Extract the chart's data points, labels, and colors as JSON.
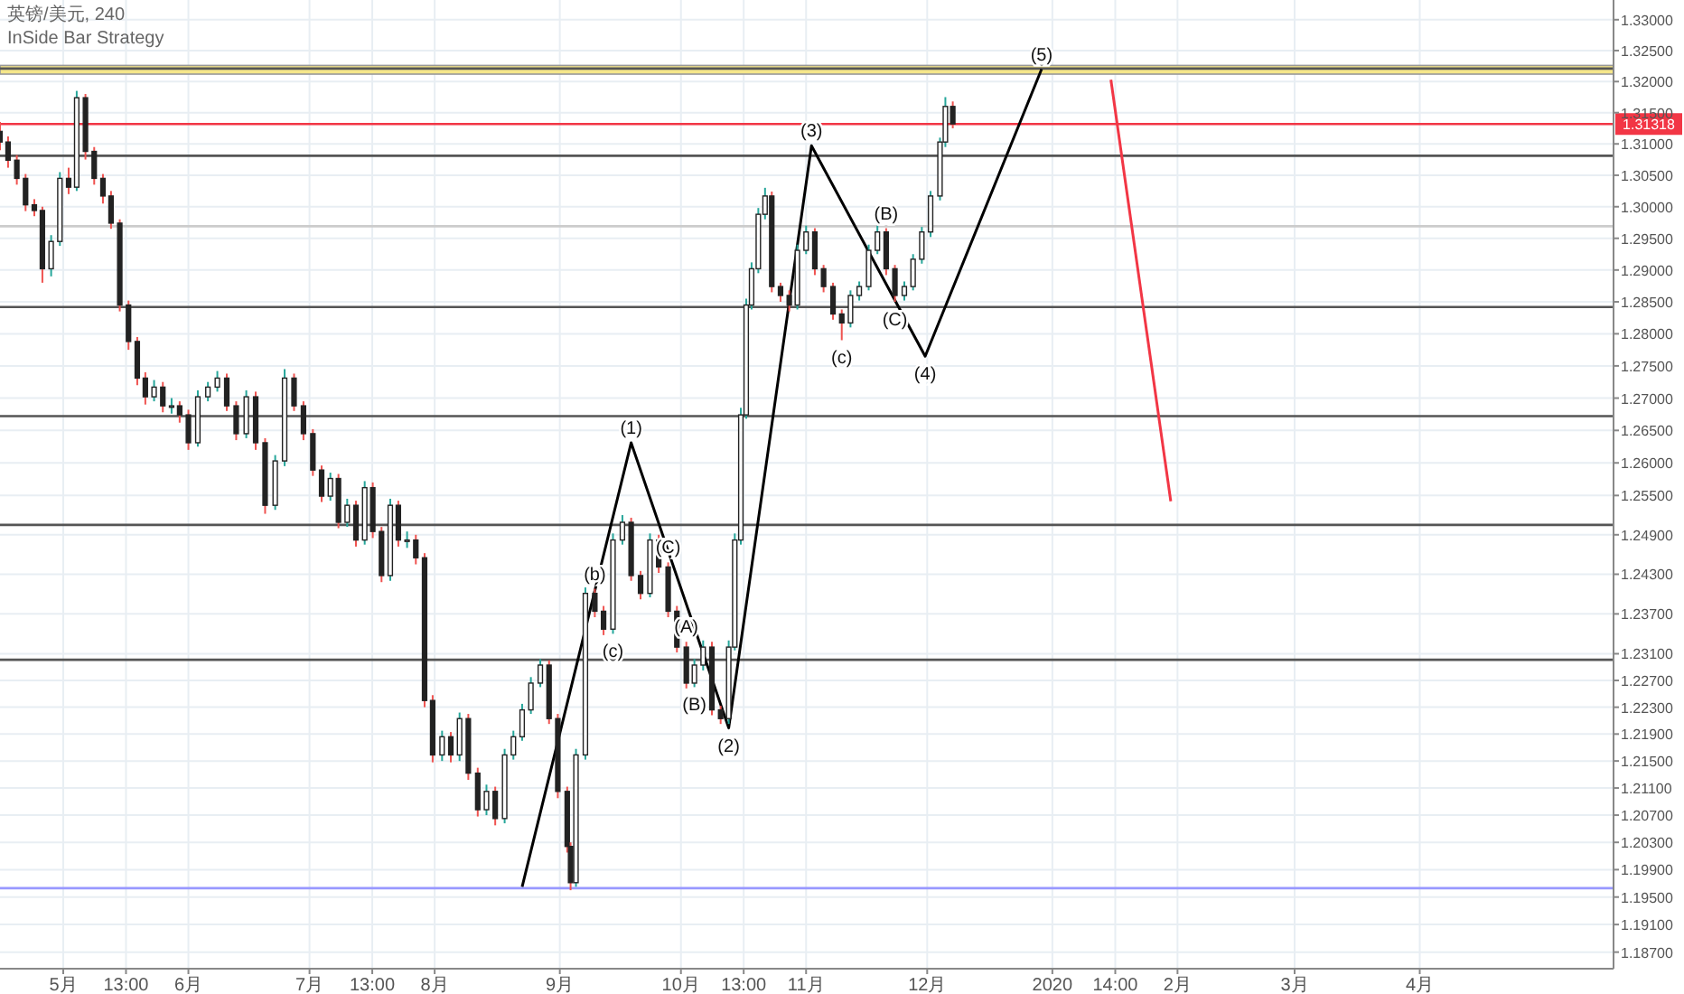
{
  "chart_data": {
    "type": "candlestick",
    "title": "英镑/美元, 240",
    "subtitle": "InSide Bar Strategy",
    "log": true,
    "grid": true,
    "ylim": [
      1.1846,
      1.3332
    ],
    "yticks": [
      {
        "value": 1.33,
        "label": "1.33000"
      },
      {
        "value": 1.325,
        "label": "1.32500"
      },
      {
        "value": 1.32,
        "label": "1.32000"
      },
      {
        "value": 1.315,
        "label": "1.31500"
      },
      {
        "value": 1.31,
        "label": "1.31000"
      },
      {
        "value": 1.305,
        "label": "1.30500"
      },
      {
        "value": 1.3,
        "label": "1.30000"
      },
      {
        "value": 1.295,
        "label": "1.29500"
      },
      {
        "value": 1.29,
        "label": "1.29000"
      },
      {
        "value": 1.285,
        "label": "1.28500"
      },
      {
        "value": 1.28,
        "label": "1.28000"
      },
      {
        "value": 1.275,
        "label": "1.27500"
      },
      {
        "value": 1.27,
        "label": "1.27000"
      },
      {
        "value": 1.265,
        "label": "1.26500"
      },
      {
        "value": 1.26,
        "label": "1.26000"
      },
      {
        "value": 1.255,
        "label": "1.25500"
      },
      {
        "value": 1.249,
        "label": "1.24900"
      },
      {
        "value": 1.243,
        "label": "1.24300"
      },
      {
        "value": 1.237,
        "label": "1.23700"
      },
      {
        "value": 1.231,
        "label": "1.23100"
      },
      {
        "value": 1.227,
        "label": "1.22700"
      },
      {
        "value": 1.223,
        "label": "1.22300"
      },
      {
        "value": 1.219,
        "label": "1.21900"
      },
      {
        "value": 1.215,
        "label": "1.21500"
      },
      {
        "value": 1.211,
        "label": "1.21100"
      },
      {
        "value": 1.207,
        "label": "1.20700"
      },
      {
        "value": 1.203,
        "label": "1.20300"
      },
      {
        "value": 1.199,
        "label": "1.19900"
      },
      {
        "value": 1.195,
        "label": "1.19500"
      },
      {
        "value": 1.191,
        "label": "1.19100"
      },
      {
        "value": 1.187,
        "label": "1.18700"
      }
    ],
    "xlim": [
      "2019-04-15T08:00",
      "2020-05-19"
    ],
    "xticks": [
      {
        "value": "2019-05-01",
        "label": "5月"
      },
      {
        "value": "2019-05-16T13:00",
        "label": "13:00"
      },
      {
        "value": "2019-06-01",
        "label": "6月"
      },
      {
        "value": "2019-07-01",
        "label": "7月"
      },
      {
        "value": "2019-07-16T13:00",
        "label": "13:00"
      },
      {
        "value": "2019-08-01",
        "label": "8月"
      },
      {
        "value": "2019-09-01",
        "label": "9月"
      },
      {
        "value": "2019-10-01",
        "label": "10月"
      },
      {
        "value": "2019-10-16T13:00",
        "label": "13:00"
      },
      {
        "value": "2019-11-01",
        "label": "11月"
      },
      {
        "value": "2019-12-01",
        "label": "12月"
      },
      {
        "value": "2020-01-01",
        "label": "2020"
      },
      {
        "value": "2020-01-16T14:00",
        "label": "14:00"
      },
      {
        "value": "2020-02-01",
        "label": "2月"
      },
      {
        "value": "2020-03-01",
        "label": "3月"
      },
      {
        "value": "2020-04-01",
        "label": "4月"
      }
    ],
    "x": [
      "2019-04-15T08:00",
      "2019-04-17T08:00",
      "2019-04-19T12:00",
      "2019-04-21T16:00",
      "2019-04-23T20:00",
      "2019-04-25T20:00",
      "2019-04-28T00:00",
      "2019-04-30T04:00",
      "2019-05-02T08:00",
      "2019-05-04T08:00",
      "2019-05-06T12:00",
      "2019-05-08T16:00",
      "2019-05-10T20:00",
      "2019-05-12T20:00",
      "2019-05-15T00:00",
      "2019-05-17T04:00",
      "2019-05-19T08:00",
      "2019-05-21T08:00",
      "2019-05-23T12:00",
      "2019-05-25T16:00",
      "2019-05-27T20:00",
      "2019-05-29T20:00",
      "2019-06-01T00:00",
      "2019-06-03T08:00",
      "2019-06-05T20:00",
      "2019-06-08T04:00",
      "2019-06-10T12:00",
      "2019-06-12T20:00",
      "2019-06-15T08:00",
      "2019-06-17T16:00",
      "2019-06-20T00:00",
      "2019-06-22T12:00",
      "2019-06-24T20:00",
      "2019-06-27T04:00",
      "2019-06-29T12:00",
      "2019-07-01T20:00",
      "2019-07-04T00:00",
      "2019-07-06T04:00",
      "2019-07-08T04:00",
      "2019-07-10T08:00",
      "2019-07-12T12:00",
      "2019-07-14T16:00",
      "2019-07-16T16:00",
      "2019-07-18T20:00",
      "2019-07-21T00:00",
      "2019-07-23T00:00",
      "2019-07-25T04:00",
      "2019-07-27T08:00",
      "2019-07-29T12:00",
      "2019-07-31T12:00",
      "2019-08-02T20:00",
      "2019-08-05T00:00",
      "2019-08-07T04:00",
      "2019-08-09T08:00",
      "2019-08-11T16:00",
      "2019-08-13T20:00",
      "2019-08-16T00:00",
      "2019-08-18T08:00",
      "2019-08-20T12:00",
      "2019-08-22T16:00",
      "2019-08-24T20:00",
      "2019-08-27T04:00",
      "2019-08-29T08:00",
      "2019-08-31T12:00",
      "2019-09-02T20:00",
      "2019-09-03T16:00",
      "2019-09-05T00:00",
      "2019-09-07T08:00",
      "2019-09-09T16:00",
      "2019-09-11T20:00",
      "2019-09-14T04:00",
      "2019-09-16T12:00",
      "2019-09-18T16:00",
      "2019-09-21T00:00",
      "2019-09-23T08:00",
      "2019-09-25T12:00",
      "2019-09-27T20:00",
      "2019-09-30T00:00",
      "2019-10-02T08:00",
      "2019-10-04T08:00",
      "2019-10-06T12:00",
      "2019-10-08T16:00",
      "2019-10-10T20:00",
      "2019-10-12T20:00",
      "2019-10-14T08:00",
      "2019-10-15T20:00",
      "2019-10-17T04:00",
      "2019-10-18T12:00",
      "2019-10-20T04:00",
      "2019-10-21T20:00",
      "2019-10-23T12:00",
      "2019-10-25T16:00",
      "2019-10-27T20:00",
      "2019-10-29T20:00",
      "2019-11-01T00:00",
      "2019-11-03T04:00",
      "2019-11-05T08:00",
      "2019-11-07T16:00",
      "2019-11-09T20:00",
      "2019-11-12T00:00",
      "2019-11-14T04:00",
      "2019-11-16T12:00",
      "2019-11-18T16:00",
      "2019-11-20T20:00",
      "2019-11-23T00:00",
      "2019-11-25T08:00",
      "2019-11-27T12:00",
      "2019-11-29T16:00",
      "2019-12-01T20:00",
      "2019-12-04T04:00",
      "2019-12-05T12:00",
      "2019-12-07T08:00"
    ],
    "ohlc": [
      [
        1.312,
        1.3135,
        1.309,
        1.3103
      ],
      [
        1.3103,
        1.3112,
        1.3062,
        1.3074
      ],
      [
        1.3074,
        1.3082,
        1.3035,
        1.3045
      ],
      [
        1.3045,
        1.3052,
        1.2993,
        1.3003
      ],
      [
        1.3003,
        1.3012,
        1.2985,
        1.2994
      ],
      [
        1.2994,
        1.3,
        1.288,
        1.2902
      ],
      [
        1.2902,
        1.2955,
        1.289,
        1.2945
      ],
      [
        1.2945,
        1.3055,
        1.2938,
        1.3045
      ],
      [
        1.3045,
        1.3062,
        1.302,
        1.3031
      ],
      [
        1.3031,
        1.3185,
        1.3025,
        1.3174
      ],
      [
        1.3174,
        1.318,
        1.3075,
        1.3088
      ],
      [
        1.3088,
        1.3095,
        1.3035,
        1.3045
      ],
      [
        1.3045,
        1.3052,
        1.3005,
        1.3017
      ],
      [
        1.3017,
        1.3025,
        1.2965,
        1.2974
      ],
      [
        1.2974,
        1.298,
        1.2835,
        1.2845
      ],
      [
        1.2845,
        1.2852,
        1.2775,
        1.2788
      ],
      [
        1.2788,
        1.2795,
        1.272,
        1.2731
      ],
      [
        1.2731,
        1.274,
        1.269,
        1.2702
      ],
      [
        1.2702,
        1.2728,
        1.2695,
        1.2717
      ],
      [
        1.2717,
        1.2725,
        1.2678,
        1.2688
      ],
      [
        1.2688,
        1.27,
        1.2676,
        1.2688
      ],
      [
        1.2688,
        1.2695,
        1.2662,
        1.2674
      ],
      [
        1.2674,
        1.2682,
        1.262,
        1.2631
      ],
      [
        1.2631,
        1.2712,
        1.2625,
        1.2702
      ],
      [
        1.2702,
        1.2725,
        1.2695,
        1.2717
      ],
      [
        1.2717,
        1.2742,
        1.271,
        1.2731
      ],
      [
        1.2731,
        1.2738,
        1.268,
        1.2688
      ],
      [
        1.2688,
        1.2695,
        1.2635,
        1.2645
      ],
      [
        1.2645,
        1.2712,
        1.2638,
        1.2702
      ],
      [
        1.2702,
        1.271,
        1.262,
        1.2631
      ],
      [
        1.2631,
        1.2638,
        1.2522,
        1.2535
      ],
      [
        1.2535,
        1.2612,
        1.2528,
        1.2603
      ],
      [
        1.2603,
        1.2745,
        1.2595,
        1.2731
      ],
      [
        1.2731,
        1.2738,
        1.268,
        1.2688
      ],
      [
        1.2688,
        1.2695,
        1.2635,
        1.2645
      ],
      [
        1.2645,
        1.2652,
        1.258,
        1.2589
      ],
      [
        1.2589,
        1.2596,
        1.254,
        1.2549
      ],
      [
        1.2549,
        1.2585,
        1.2542,
        1.2576
      ],
      [
        1.2576,
        1.2583,
        1.25,
        1.2509
      ],
      [
        1.2509,
        1.2545,
        1.2502,
        1.2535
      ],
      [
        1.2535,
        1.2542,
        1.2472,
        1.2482
      ],
      [
        1.2482,
        1.2572,
        1.2475,
        1.2562
      ],
      [
        1.2562,
        1.257,
        1.2485,
        1.2495
      ],
      [
        1.2495,
        1.2502,
        1.2418,
        1.2428
      ],
      [
        1.2428,
        1.2545,
        1.242,
        1.2535
      ],
      [
        1.2535,
        1.2542,
        1.2472,
        1.2482
      ],
      [
        1.2482,
        1.2495,
        1.247,
        1.2482
      ],
      [
        1.2482,
        1.249,
        1.2445,
        1.2455
      ],
      [
        1.2455,
        1.2462,
        1.223,
        1.224
      ],
      [
        1.224,
        1.2248,
        1.2148,
        1.2159
      ],
      [
        1.2159,
        1.2195,
        1.215,
        1.2186
      ],
      [
        1.2186,
        1.2193,
        1.2148,
        1.2159
      ],
      [
        1.2159,
        1.2222,
        1.215,
        1.2213
      ],
      [
        1.2213,
        1.222,
        1.2122,
        1.2132
      ],
      [
        1.2132,
        1.214,
        1.2068,
        1.2078
      ],
      [
        1.2078,
        1.2115,
        1.207,
        1.2105
      ],
      [
        1.2105,
        1.2112,
        1.2055,
        1.2065
      ],
      [
        1.2065,
        1.2168,
        1.2058,
        1.2159
      ],
      [
        1.2159,
        1.2195,
        1.2152,
        1.2186
      ],
      [
        1.2186,
        1.2235,
        1.218,
        1.2226
      ],
      [
        1.2226,
        1.2275,
        1.222,
        1.2266
      ],
      [
        1.2266,
        1.2302,
        1.226,
        1.2293
      ],
      [
        1.2293,
        1.23,
        1.2205,
        1.2213
      ],
      [
        1.2213,
        1.222,
        1.2095,
        1.2105
      ],
      [
        1.2105,
        1.2112,
        1.2015,
        1.2024
      ],
      [
        1.2024,
        1.203,
        1.196,
        1.1971
      ],
      [
        1.1971,
        1.2168,
        1.1965,
        1.2159
      ],
      [
        1.2159,
        1.241,
        1.2152,
        1.2401
      ],
      [
        1.2401,
        1.2408,
        1.2365,
        1.2374
      ],
      [
        1.2374,
        1.2382,
        1.2338,
        1.2347
      ],
      [
        1.2347,
        1.2492,
        1.234,
        1.2482
      ],
      [
        1.2482,
        1.252,
        1.2475,
        1.2509
      ],
      [
        1.2509,
        1.2516,
        1.242,
        1.2428
      ],
      [
        1.2428,
        1.2435,
        1.2392,
        1.2401
      ],
      [
        1.2401,
        1.2492,
        1.2395,
        1.2482
      ],
      [
        1.2482,
        1.249,
        1.2432,
        1.2441
      ],
      [
        1.2441,
        1.2448,
        1.2365,
        1.2374
      ],
      [
        1.2374,
        1.2382,
        1.2312,
        1.232
      ],
      [
        1.232,
        1.2328,
        1.2258,
        1.2266
      ],
      [
        1.2266,
        1.2302,
        1.226,
        1.2293
      ],
      [
        1.2293,
        1.233,
        1.2285,
        1.232
      ],
      [
        1.232,
        1.2328,
        1.2218,
        1.2226
      ],
      [
        1.2226,
        1.2232,
        1.2205,
        1.2213
      ],
      [
        1.2213,
        1.233,
        1.2205,
        1.232
      ],
      [
        1.232,
        1.2492,
        1.2315,
        1.2482
      ],
      [
        1.2482,
        1.2685,
        1.2475,
        1.2674
      ],
      [
        1.2674,
        1.2855,
        1.2668,
        1.2845
      ],
      [
        1.2845,
        1.2912,
        1.2838,
        1.2902
      ],
      [
        1.2902,
        1.2998,
        1.2895,
        1.2988
      ],
      [
        1.2988,
        1.303,
        1.298,
        1.3017
      ],
      [
        1.3017,
        1.3024,
        1.2865,
        1.2874
      ],
      [
        1.2874,
        1.288,
        1.285,
        1.286
      ],
      [
        1.286,
        1.2868,
        1.2835,
        1.2845
      ],
      [
        1.2845,
        1.294,
        1.2838,
        1.2931
      ],
      [
        1.2931,
        1.297,
        1.2925,
        1.296
      ],
      [
        1.296,
        1.2966,
        1.2892,
        1.2902
      ],
      [
        1.2902,
        1.2908,
        1.2865,
        1.2874
      ],
      [
        1.2874,
        1.288,
        1.2822,
        1.2831
      ],
      [
        1.2831,
        1.2838,
        1.279,
        1.2817
      ],
      [
        1.2817,
        1.2868,
        1.281,
        1.286
      ],
      [
        1.286,
        1.2882,
        1.2852,
        1.2874
      ],
      [
        1.2874,
        1.294,
        1.2868,
        1.2931
      ],
      [
        1.2931,
        1.297,
        1.2925,
        1.296
      ],
      [
        1.296,
        1.2966,
        1.2892,
        1.2902
      ],
      [
        1.2902,
        1.2908,
        1.285,
        1.286
      ],
      [
        1.286,
        1.2882,
        1.2852,
        1.2874
      ],
      [
        1.2874,
        1.2925,
        1.2868,
        1.2917
      ],
      [
        1.2917,
        1.2968,
        1.291,
        1.296
      ],
      [
        1.296,
        1.3025,
        1.2952,
        1.3017
      ],
      [
        1.3017,
        1.311,
        1.301,
        1.3103
      ],
      [
        1.3103,
        1.3175,
        1.3095,
        1.316
      ],
      [
        1.316,
        1.3168,
        1.3125,
        1.3132
      ]
    ],
    "series": [
      {
        "type": "line",
        "color": "#000000",
        "x": [
          "2019-08-22T16:00",
          "2019-09-18T16:00",
          "2019-10-12T20:00",
          "2019-11-02T08:00",
          "2019-11-30T12:00",
          "2019-12-29T08:00"
        ],
        "values": [
          1.1965,
          1.2631,
          1.2199,
          1.3097,
          1.2765,
          1.322
        ]
      },
      {
        "type": "line",
        "color": "#f23645",
        "x": [
          "2020-01-15T12:00",
          "2020-01-30T08:00"
        ],
        "values": [
          1.3203,
          1.2541
        ]
      }
    ],
    "ref_lines": [
      {
        "axis": "y",
        "value": 1.3221,
        "color": "#555555"
      },
      {
        "axis": "y",
        "value": 1.3081,
        "color": "#555555"
      },
      {
        "axis": "y",
        "value": 1.2969,
        "color": "#cccccc"
      },
      {
        "axis": "y",
        "value": 1.2842,
        "color": "#555555"
      },
      {
        "axis": "y",
        "value": 1.2672,
        "color": "#555555"
      },
      {
        "axis": "y",
        "value": 1.2505,
        "color": "#555555"
      },
      {
        "axis": "y",
        "value": 1.2301,
        "color": "#555555"
      },
      {
        "axis": "y",
        "value": 1.1963,
        "color": "#9999ff"
      },
      {
        "axis": "y",
        "value": 1.31318,
        "label": "1.31318",
        "color": "#f23645"
      }
    ],
    "bands": [
      {
        "axis": "y",
        "from": 1.3212,
        "to": 1.3226,
        "color": "#f5e68a"
      }
    ],
    "annotations": [
      {
        "text": "(1)",
        "x": "2019-09-18T16:00",
        "y": 1.2631
      },
      {
        "text": "(2)",
        "x": "2019-10-12T20:00",
        "y": 1.2199
      },
      {
        "text": "(3)",
        "x": "2019-11-02T08:00",
        "y": 1.3097
      },
      {
        "text": "(4)",
        "x": "2019-11-30T12:00",
        "y": 1.2765
      },
      {
        "text": "(5)",
        "x": "2019-12-29T08:00",
        "y": 1.322
      },
      {
        "text": "(c)",
        "x": "2019-11-09T20:00",
        "y": 1.279
      },
      {
        "text": "(b)",
        "x": "2019-09-09T16:00",
        "y": 1.2408
      },
      {
        "text": "(c)",
        "x": "2019-09-14T04:00",
        "y": 1.234
      },
      {
        "text": "(A)",
        "x": "2019-10-02T08:00",
        "y": 1.2328
      },
      {
        "text": "(B)",
        "x": "2019-10-04T08:00",
        "y": 1.226
      },
      {
        "text": "(C)",
        "x": "2019-09-27T20:00",
        "y": 1.2448
      },
      {
        "text": "(B)",
        "x": "2019-11-20T20:00",
        "y": 1.2966
      },
      {
        "text": "(C)",
        "x": "2019-11-23T00:00",
        "y": 1.285
      }
    ]
  }
}
